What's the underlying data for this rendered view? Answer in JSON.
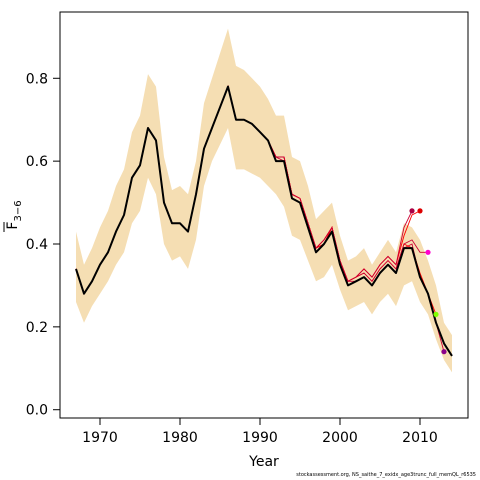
{
  "chart_data": {
    "type": "line",
    "xlabel": "Year",
    "ylabel": {
      "base": "F",
      "sub": "3−6"
    },
    "xlim": [
      1965,
      2016
    ],
    "ylim": [
      -0.02,
      0.96
    ],
    "x_ticks": [
      "1970",
      "1980",
      "1990",
      "2000",
      "2010"
    ],
    "y_ticks": [
      "0.0",
      "0.2",
      "0.4",
      "0.6",
      "0.8"
    ],
    "grid": false,
    "colors": {
      "band": "#f5deb3",
      "main": "#000000",
      "retro": "#ff0000",
      "retro_dark": "#cc0033"
    },
    "confidence_band": {
      "x": [
        1967,
        1968,
        1969,
        1970,
        1971,
        1972,
        1973,
        1974,
        1975,
        1976,
        1977,
        1978,
        1979,
        1980,
        1981,
        1982,
        1983,
        1984,
        1985,
        1986,
        1987,
        1988,
        1989,
        1990,
        1991,
        1992,
        1993,
        1994,
        1995,
        1996,
        1997,
        1998,
        1999,
        2000,
        2001,
        2002,
        2003,
        2004,
        2005,
        2006,
        2007,
        2008,
        2009,
        2010,
        2011,
        2012,
        2013,
        2014
      ],
      "upper": [
        0.43,
        0.35,
        0.39,
        0.44,
        0.48,
        0.54,
        0.58,
        0.67,
        0.71,
        0.81,
        0.78,
        0.61,
        0.53,
        0.54,
        0.52,
        0.6,
        0.74,
        0.8,
        0.86,
        0.92,
        0.83,
        0.82,
        0.8,
        0.78,
        0.75,
        0.71,
        0.71,
        0.61,
        0.6,
        0.54,
        0.46,
        0.48,
        0.5,
        0.42,
        0.36,
        0.37,
        0.39,
        0.35,
        0.38,
        0.41,
        0.38,
        0.45,
        0.44,
        0.41,
        0.36,
        0.3,
        0.21,
        0.18
      ],
      "lower": [
        0.26,
        0.21,
        0.25,
        0.28,
        0.31,
        0.35,
        0.38,
        0.45,
        0.48,
        0.56,
        0.52,
        0.4,
        0.36,
        0.37,
        0.34,
        0.41,
        0.54,
        0.6,
        0.64,
        0.68,
        0.58,
        0.58,
        0.57,
        0.56,
        0.54,
        0.52,
        0.49,
        0.42,
        0.41,
        0.36,
        0.31,
        0.32,
        0.35,
        0.29,
        0.24,
        0.25,
        0.26,
        0.23,
        0.26,
        0.28,
        0.25,
        0.3,
        0.31,
        0.26,
        0.23,
        0.17,
        0.12,
        0.09
      ]
    },
    "series": [
      {
        "x": [
          1967,
          1968,
          1969,
          1970,
          1971,
          1972,
          1973,
          1974,
          1975,
          1976,
          1977,
          1978,
          1979,
          1980,
          1981,
          1982,
          1983,
          1984,
          1985,
          1986,
          1987,
          1988,
          1989,
          1990,
          1991,
          1992,
          1993,
          1994,
          1995,
          1996,
          1997,
          1998,
          1999,
          2000,
          2001,
          2002,
          2003,
          2004,
          2005,
          2006,
          2007,
          2008,
          2009,
          2010,
          2011,
          2012,
          2013,
          2014
        ],
        "values": [
          0.34,
          0.28,
          0.31,
          0.35,
          0.38,
          0.43,
          0.47,
          0.56,
          0.59,
          0.68,
          0.65,
          0.5,
          0.45,
          0.45,
          0.43,
          0.52,
          0.63,
          0.68,
          0.73,
          0.78,
          0.7,
          0.7,
          0.69,
          0.67,
          0.65,
          0.6,
          0.6,
          0.51,
          0.5,
          0.44,
          0.38,
          0.4,
          0.43,
          0.35,
          0.3,
          0.31,
          0.32,
          0.3,
          0.33,
          0.35,
          0.33,
          0.39,
          0.39,
          0.32,
          0.28,
          0.21,
          0.16,
          0.13
        ]
      }
    ],
    "retro_series": [
      {
        "x": [
          1967,
          1968,
          1969,
          1970,
          1971,
          1972,
          1973,
          1974,
          1975,
          1976,
          1977,
          1978,
          1979,
          1980,
          1981,
          1982,
          1983,
          1984,
          1985,
          1986,
          1987,
          1988,
          1989,
          1990,
          1991,
          1992,
          1993,
          1994,
          1995,
          1996,
          1997,
          1998,
          1999,
          2000,
          2001,
          2002,
          2003,
          2004,
          2005,
          2006,
          2007,
          2008,
          2009,
          2010,
          2011,
          2012,
          2013
        ],
        "values": [
          0.34,
          0.28,
          0.31,
          0.35,
          0.38,
          0.43,
          0.47,
          0.56,
          0.59,
          0.68,
          0.65,
          0.5,
          0.45,
          0.45,
          0.43,
          0.52,
          0.63,
          0.68,
          0.73,
          0.78,
          0.7,
          0.7,
          0.69,
          0.67,
          0.65,
          0.61,
          0.6,
          0.52,
          0.51,
          0.45,
          0.39,
          0.4,
          0.44,
          0.35,
          0.31,
          0.31,
          0.32,
          0.3,
          0.33,
          0.35,
          0.33,
          0.39,
          0.4,
          0.32,
          0.28,
          0.21,
          0.14
        ],
        "color": "#8b008b"
      },
      {
        "x": [
          1967,
          1968,
          1969,
          1970,
          1971,
          1972,
          1973,
          1974,
          1975,
          1976,
          1977,
          1978,
          1979,
          1980,
          1981,
          1982,
          1983,
          1984,
          1985,
          1986,
          1987,
          1988,
          1989,
          1990,
          1991,
          1992,
          1993,
          1994,
          1995,
          1996,
          1997,
          1998,
          1999,
          2000,
          2001,
          2002,
          2003,
          2004,
          2005,
          2006,
          2007,
          2008,
          2009,
          2010,
          2011,
          2012
        ],
        "values": [
          0.34,
          0.28,
          0.31,
          0.35,
          0.38,
          0.43,
          0.47,
          0.56,
          0.59,
          0.68,
          0.65,
          0.5,
          0.45,
          0.45,
          0.43,
          0.52,
          0.63,
          0.68,
          0.73,
          0.78,
          0.7,
          0.7,
          0.69,
          0.67,
          0.65,
          0.61,
          0.61,
          0.52,
          0.51,
          0.45,
          0.39,
          0.4,
          0.44,
          0.35,
          0.31,
          0.32,
          0.33,
          0.31,
          0.34,
          0.36,
          0.34,
          0.4,
          0.39,
          0.33,
          0.28,
          0.23
        ],
        "color": "#7fff00"
      },
      {
        "x": [
          1967,
          1968,
          1969,
          1970,
          1971,
          1972,
          1973,
          1974,
          1975,
          1976,
          1977,
          1978,
          1979,
          1980,
          1981,
          1982,
          1983,
          1984,
          1985,
          1986,
          1987,
          1988,
          1989,
          1990,
          1991,
          1992,
          1993,
          1994,
          1995,
          1996,
          1997,
          1998,
          1999,
          2000,
          2001,
          2002,
          2003,
          2004,
          2005,
          2006,
          2007,
          2008,
          2009,
          2010,
          2011
        ],
        "values": [
          0.34,
          0.28,
          0.31,
          0.35,
          0.38,
          0.43,
          0.47,
          0.56,
          0.59,
          0.68,
          0.65,
          0.5,
          0.45,
          0.45,
          0.43,
          0.52,
          0.63,
          0.68,
          0.73,
          0.78,
          0.7,
          0.7,
          0.69,
          0.67,
          0.65,
          0.61,
          0.61,
          0.52,
          0.51,
          0.45,
          0.39,
          0.41,
          0.44,
          0.36,
          0.31,
          0.32,
          0.33,
          0.31,
          0.34,
          0.36,
          0.34,
          0.4,
          0.41,
          0.38,
          0.38
        ],
        "color": "#ff00cc"
      },
      {
        "x": [
          1967,
          1968,
          1969,
          1970,
          1971,
          1972,
          1973,
          1974,
          1975,
          1976,
          1977,
          1978,
          1979,
          1980,
          1981,
          1982,
          1983,
          1984,
          1985,
          1986,
          1987,
          1988,
          1989,
          1990,
          1991,
          1992,
          1993,
          1994,
          1995,
          1996,
          1997,
          1998,
          1999,
          2000,
          2001,
          2002,
          2003,
          2004,
          2005,
          2006,
          2007,
          2008,
          2009,
          2010
        ],
        "values": [
          0.34,
          0.28,
          0.31,
          0.35,
          0.38,
          0.43,
          0.47,
          0.56,
          0.59,
          0.68,
          0.65,
          0.5,
          0.45,
          0.45,
          0.43,
          0.52,
          0.63,
          0.68,
          0.73,
          0.78,
          0.7,
          0.7,
          0.69,
          0.67,
          0.65,
          0.61,
          0.61,
          0.52,
          0.51,
          0.45,
          0.39,
          0.41,
          0.44,
          0.36,
          0.31,
          0.32,
          0.34,
          0.32,
          0.35,
          0.37,
          0.35,
          0.42,
          0.47,
          0.48
        ],
        "color": "#dd0000"
      },
      {
        "x": [
          1967,
          1968,
          1969,
          1970,
          1971,
          1972,
          1973,
          1974,
          1975,
          1976,
          1977,
          1978,
          1979,
          1980,
          1981,
          1982,
          1983,
          1984,
          1985,
          1986,
          1987,
          1988,
          1989,
          1990,
          1991,
          1992,
          1993,
          1994,
          1995,
          1996,
          1997,
          1998,
          1999,
          2000,
          2001,
          2002,
          2003,
          2004,
          2005,
          2006,
          2007,
          2008,
          2009
        ],
        "values": [
          0.34,
          0.28,
          0.31,
          0.35,
          0.38,
          0.43,
          0.47,
          0.56,
          0.59,
          0.68,
          0.65,
          0.5,
          0.45,
          0.45,
          0.43,
          0.52,
          0.63,
          0.68,
          0.73,
          0.78,
          0.7,
          0.7,
          0.69,
          0.67,
          0.65,
          0.61,
          0.61,
          0.52,
          0.51,
          0.45,
          0.39,
          0.41,
          0.44,
          0.36,
          0.31,
          0.32,
          0.34,
          0.32,
          0.35,
          0.37,
          0.35,
          0.44,
          0.48
        ],
        "color": "#aa0044"
      }
    ]
  },
  "footer": "stockassessment.org, NS_saithe_7_exidx_age3trunc_full_memQL_r6535"
}
